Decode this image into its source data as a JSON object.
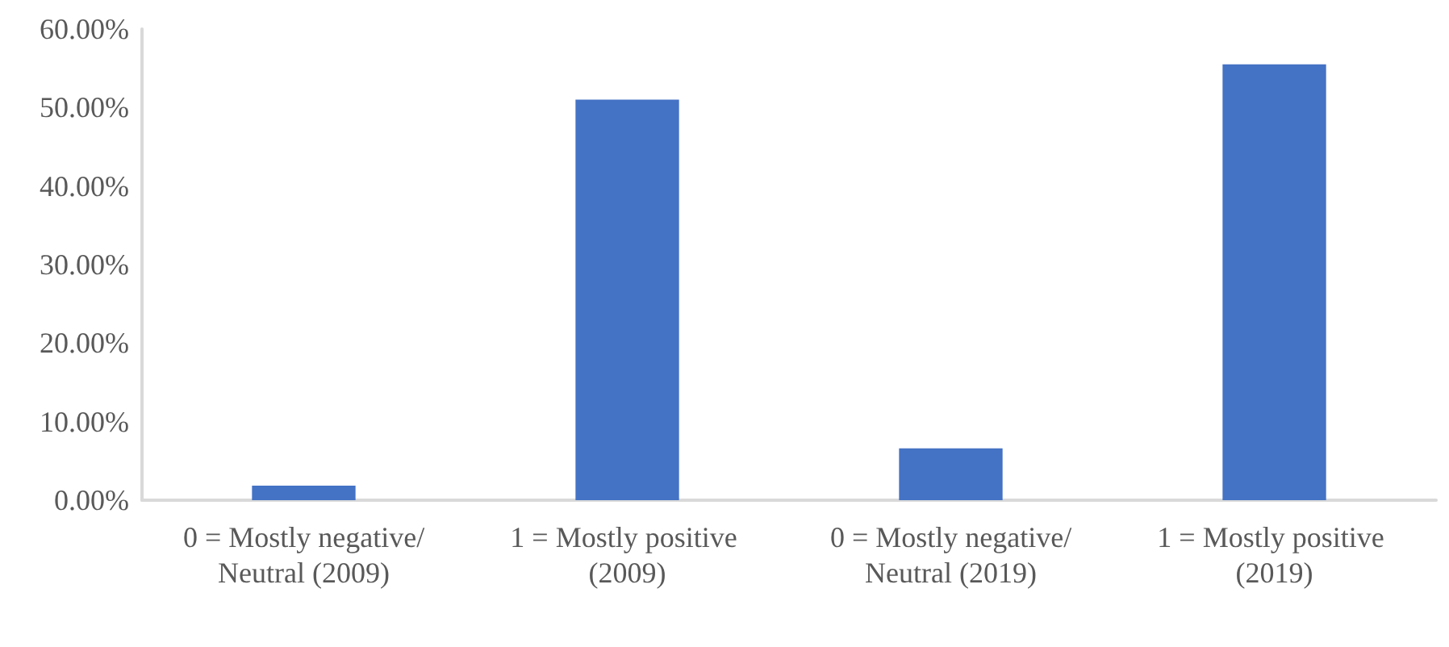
{
  "chart_data": {
    "type": "bar",
    "categories": [
      "0 = Mostly negative/Neutral (2009)",
      "1 = Mostly positive (2009)",
      "0 = Mostly negative/Neutral (2019)",
      "1 = Mostly positive (2019)"
    ],
    "values": [
      1.85,
      51.0,
      6.6,
      55.5
    ],
    "color": "#4472c4",
    "ylim": [
      0,
      60
    ],
    "yticks": [
      {
        "value": 0,
        "label": "0.00%"
      },
      {
        "value": 10,
        "label": "10.00%"
      },
      {
        "value": 20,
        "label": "20.00%"
      },
      {
        "value": 30,
        "label": "30.00%"
      },
      {
        "value": 40,
        "label": "40.00%"
      },
      {
        "value": 50,
        "label": "50.00%"
      },
      {
        "value": 60,
        "label": "60.00%"
      }
    ],
    "grid": false
  }
}
